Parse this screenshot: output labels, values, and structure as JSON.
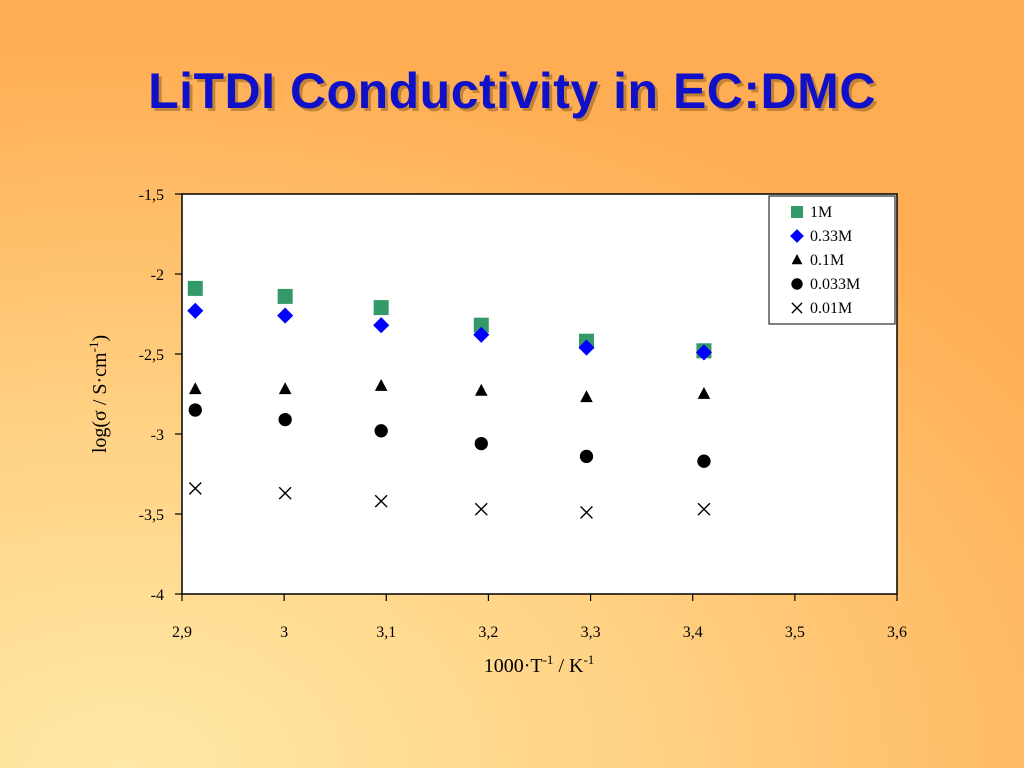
{
  "slide": {
    "title": "LiTDI Conductivity in EC:DMC"
  },
  "chart_data": {
    "type": "scatter",
    "xlim": [
      2.9,
      3.6
    ],
    "ylim": [
      -4,
      -1.5
    ],
    "x_ticks": [
      "2,9",
      "3",
      "3,1",
      "3,2",
      "3,3",
      "3,4",
      "3,5",
      "3,6"
    ],
    "y_ticks": [
      "-1,5",
      "-2",
      "-2,5",
      "-3",
      "-3,5",
      "-4"
    ],
    "x_tick_values": [
      2.9,
      3.0,
      3.1,
      3.2,
      3.3,
      3.4,
      3.5,
      3.6
    ],
    "y_tick_values": [
      -1.5,
      -2.0,
      -2.5,
      -3.0,
      -3.5,
      -4.0
    ],
    "xlabel": {
      "main": "1000·T",
      "sup1": "-1",
      "mid": " / K",
      "sup2": "-1"
    },
    "ylabel": {
      "main": "log(σ / S·cm",
      "sup": "-1",
      "end": ")"
    },
    "grid": false,
    "legend_position": "top-right",
    "series": [
      {
        "name": "1M",
        "marker": "square",
        "color": "#339966",
        "x": [
          2.913,
          3.001,
          3.095,
          3.193,
          3.296,
          3.411
        ],
        "y": [
          -2.09,
          -2.14,
          -2.21,
          -2.32,
          -2.42,
          -2.48
        ]
      },
      {
        "name": "0.33M",
        "marker": "diamond",
        "color": "#0000ff",
        "x": [
          2.913,
          3.001,
          3.095,
          3.193,
          3.296,
          3.411
        ],
        "y": [
          -2.23,
          -2.26,
          -2.32,
          -2.38,
          -2.46,
          -2.49
        ]
      },
      {
        "name": "0.1M",
        "marker": "triangle",
        "color": "#000000",
        "x": [
          2.913,
          3.001,
          3.095,
          3.193,
          3.296,
          3.411
        ],
        "y": [
          -2.72,
          -2.72,
          -2.7,
          -2.73,
          -2.77,
          -2.75
        ]
      },
      {
        "name": "0.033M",
        "marker": "circle",
        "color": "#000000",
        "x": [
          2.913,
          3.001,
          3.095,
          3.193,
          3.296,
          3.411
        ],
        "y": [
          -2.85,
          -2.91,
          -2.98,
          -3.06,
          -3.14,
          -3.17
        ]
      },
      {
        "name": "0.01M",
        "marker": "cross",
        "color": "#000000",
        "x": [
          2.913,
          3.001,
          3.095,
          3.193,
          3.296,
          3.411
        ],
        "y": [
          -3.34,
          -3.37,
          -3.42,
          -3.47,
          -3.49,
          -3.47
        ]
      }
    ]
  }
}
